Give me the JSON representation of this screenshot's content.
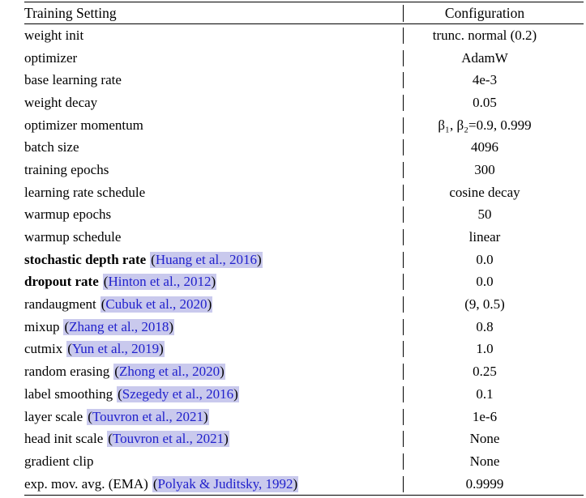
{
  "header": {
    "setting": "Training Setting",
    "config": "Configuration"
  },
  "colors": {
    "link_blue": "#2121cc",
    "link_highlight": "#c9c9ed",
    "rule_black": "#000000"
  },
  "rows": [
    {
      "setting": "weight init",
      "bold": false,
      "citation": null,
      "value": "trunc. normal (0.2)"
    },
    {
      "setting": "optimizer",
      "bold": false,
      "citation": null,
      "value": "AdamW"
    },
    {
      "setting": "base learning rate",
      "bold": false,
      "citation": null,
      "value": "4e-3"
    },
    {
      "setting": "weight decay",
      "bold": false,
      "citation": null,
      "value": "0.05"
    },
    {
      "setting": "optimizer momentum",
      "bold": false,
      "citation": null,
      "value": "β₁, β₂=0.9, 0.999"
    },
    {
      "setting": "batch size",
      "bold": false,
      "citation": null,
      "value": "4096"
    },
    {
      "setting": "training epochs",
      "bold": false,
      "citation": null,
      "value": "300"
    },
    {
      "setting": "learning rate schedule",
      "bold": false,
      "citation": null,
      "value": "cosine decay"
    },
    {
      "setting": "warmup epochs",
      "bold": false,
      "citation": null,
      "value": "50"
    },
    {
      "setting": "warmup schedule",
      "bold": false,
      "citation": null,
      "value": "linear"
    },
    {
      "setting": "stochastic depth rate",
      "bold": true,
      "citation": {
        "open": "(",
        "label": "Huang et al., 2016",
        "close": ")"
      },
      "value": "0.0"
    },
    {
      "setting": "dropout rate",
      "bold": true,
      "citation": {
        "open": "(",
        "label": "Hinton et al., 2012",
        "close": ")"
      },
      "value": "0.0"
    },
    {
      "setting": "randaugment",
      "bold": false,
      "citation": {
        "open": "(",
        "label": "Cubuk et al., 2020",
        "close": ")"
      },
      "value": "(9, 0.5)"
    },
    {
      "setting": "mixup",
      "bold": false,
      "citation": {
        "open": "(",
        "label": "Zhang et al., 2018",
        "close": ")"
      },
      "value": "0.8"
    },
    {
      "setting": "cutmix",
      "bold": false,
      "citation": {
        "open": "(",
        "label": "Yun et al., 2019",
        "close": ")"
      },
      "value": "1.0"
    },
    {
      "setting": "random erasing",
      "bold": false,
      "citation": {
        "open": "(",
        "label": "Zhong et al., 2020",
        "close": ")"
      },
      "value": "0.25"
    },
    {
      "setting": "label smoothing",
      "bold": false,
      "citation": {
        "open": "(",
        "label": "Szegedy et al., 2016",
        "close": ")"
      },
      "value": "0.1"
    },
    {
      "setting": "layer scale",
      "bold": false,
      "citation": {
        "open": "(",
        "label": "Touvron et al., 2021",
        "close": ")"
      },
      "value": "1e-6"
    },
    {
      "setting": "head init scale",
      "bold": false,
      "citation": {
        "open": "(",
        "label": "Touvron et al., 2021",
        "close": ")"
      },
      "value": "None"
    },
    {
      "setting": "gradient clip",
      "bold": false,
      "citation": null,
      "value": "None"
    },
    {
      "setting": "exp. mov. avg. (EMA)",
      "bold": false,
      "citation": {
        "open": "(",
        "label": "Polyak & Juditsky, 1992",
        "close": ")"
      },
      "value": "0.9999"
    }
  ]
}
